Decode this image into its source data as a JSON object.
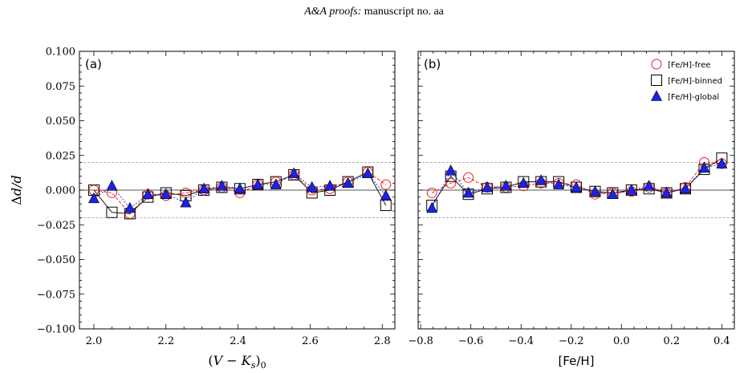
{
  "header": {
    "italic": "A&A proofs:",
    "rest": " manuscript no. aa"
  },
  "colors": {
    "free": "#e8231c",
    "binned": "#000000",
    "global": "#1a23e6"
  },
  "chart_data": [
    {
      "type": "scatter",
      "panel_label": "(a)",
      "xlabel": "(V − Ks)0",
      "ylabel": "Δd/d",
      "xlim": [
        1.96,
        2.835
      ],
      "ylim": [
        -0.1,
        0.1
      ],
      "xticks": [
        2.0,
        2.2,
        2.4,
        2.6,
        2.8
      ],
      "xtick_labels": [
        "2.0",
        "2.2",
        "2.4",
        "2.6",
        "2.8"
      ],
      "yticks": [
        -0.1,
        -0.075,
        -0.05,
        -0.025,
        0.0,
        0.025,
        0.05,
        0.075,
        0.1
      ],
      "ytick_labels": [
        "−0.100",
        "−0.075",
        "−0.050",
        "−0.025",
        "0.000",
        "0.025",
        "0.050",
        "0.075",
        "0.100"
      ],
      "reference_lines": [
        0.0,
        0.02,
        -0.02
      ],
      "x": [
        2.0,
        2.05,
        2.1,
        2.15,
        2.2,
        2.255,
        2.305,
        2.355,
        2.405,
        2.455,
        2.505,
        2.555,
        2.605,
        2.655,
        2.705,
        2.76,
        2.81
      ],
      "series": [
        {
          "name": "[Fe/H]-free",
          "marker": "circle",
          "linestyle": "dashed",
          "values": [
            0.0,
            -0.002,
            -0.017,
            -0.003,
            -0.004,
            -0.002,
            0.0,
            0.002,
            -0.002,
            0.004,
            0.006,
            0.011,
            0.0,
            0.001,
            0.006,
            0.013,
            0.004
          ]
        },
        {
          "name": "[Fe/H]-binned",
          "marker": "square",
          "linestyle": "solid",
          "values": [
            0.0,
            -0.016,
            -0.017,
            -0.005,
            -0.002,
            -0.004,
            0.0,
            0.002,
            0.001,
            0.004,
            0.006,
            0.011,
            -0.002,
            0.0,
            0.006,
            0.013,
            -0.011
          ]
        },
        {
          "name": "[Fe/H]-global",
          "marker": "triangle",
          "linestyle": "dotted",
          "values": [
            -0.006,
            0.003,
            -0.013,
            -0.003,
            -0.003,
            -0.009,
            0.001,
            0.003,
            0.001,
            0.004,
            0.004,
            0.012,
            0.002,
            0.003,
            0.005,
            0.012,
            -0.004
          ]
        }
      ]
    },
    {
      "type": "scatter",
      "panel_label": "(b)",
      "xlabel": "[Fe/H]",
      "ylabel": "",
      "xlim": [
        -0.81,
        0.45
      ],
      "ylim": [
        -0.1,
        0.1
      ],
      "xticks": [
        -0.8,
        -0.6,
        -0.4,
        -0.2,
        0.0,
        0.2,
        0.4
      ],
      "xtick_labels": [
        "−0.8",
        "−0.6",
        "−0.4",
        "−0.2",
        "0.0",
        "0.2",
        "0.4"
      ],
      "yticks": [
        -0.1,
        -0.075,
        -0.05,
        -0.025,
        0.0,
        0.025,
        0.05,
        0.075,
        0.1
      ],
      "reference_lines": [
        0.0,
        0.02,
        -0.02
      ],
      "legend_position": "top-right",
      "x": [
        -0.755,
        -0.68,
        -0.61,
        -0.535,
        -0.46,
        -0.39,
        -0.32,
        -0.25,
        -0.18,
        -0.105,
        -0.035,
        0.04,
        0.11,
        0.18,
        0.255,
        0.33,
        0.4
      ],
      "series": [
        {
          "name": "[Fe/H]-free",
          "marker": "circle",
          "linestyle": "dashed",
          "values": [
            -0.002,
            0.005,
            0.009,
            0.002,
            0.002,
            0.003,
            0.005,
            0.005,
            0.004,
            -0.003,
            -0.002,
            -0.001,
            0.002,
            -0.002,
            0.002,
            0.02,
            0.019
          ]
        },
        {
          "name": "[Fe/H]-binned",
          "marker": "square",
          "linestyle": "solid",
          "values": [
            -0.011,
            0.01,
            -0.003,
            0.001,
            0.002,
            0.006,
            0.006,
            0.006,
            0.002,
            -0.001,
            -0.002,
            0.0,
            0.001,
            -0.002,
            0.001,
            0.015,
            0.023
          ]
        },
        {
          "name": "[Fe/H]-global",
          "marker": "triangle",
          "linestyle": "dotted",
          "values": [
            -0.013,
            0.014,
            -0.002,
            0.002,
            0.003,
            0.005,
            0.007,
            0.004,
            0.002,
            -0.001,
            -0.003,
            0.0,
            0.003,
            -0.002,
            0.001,
            0.016,
            0.019
          ]
        }
      ]
    }
  ]
}
